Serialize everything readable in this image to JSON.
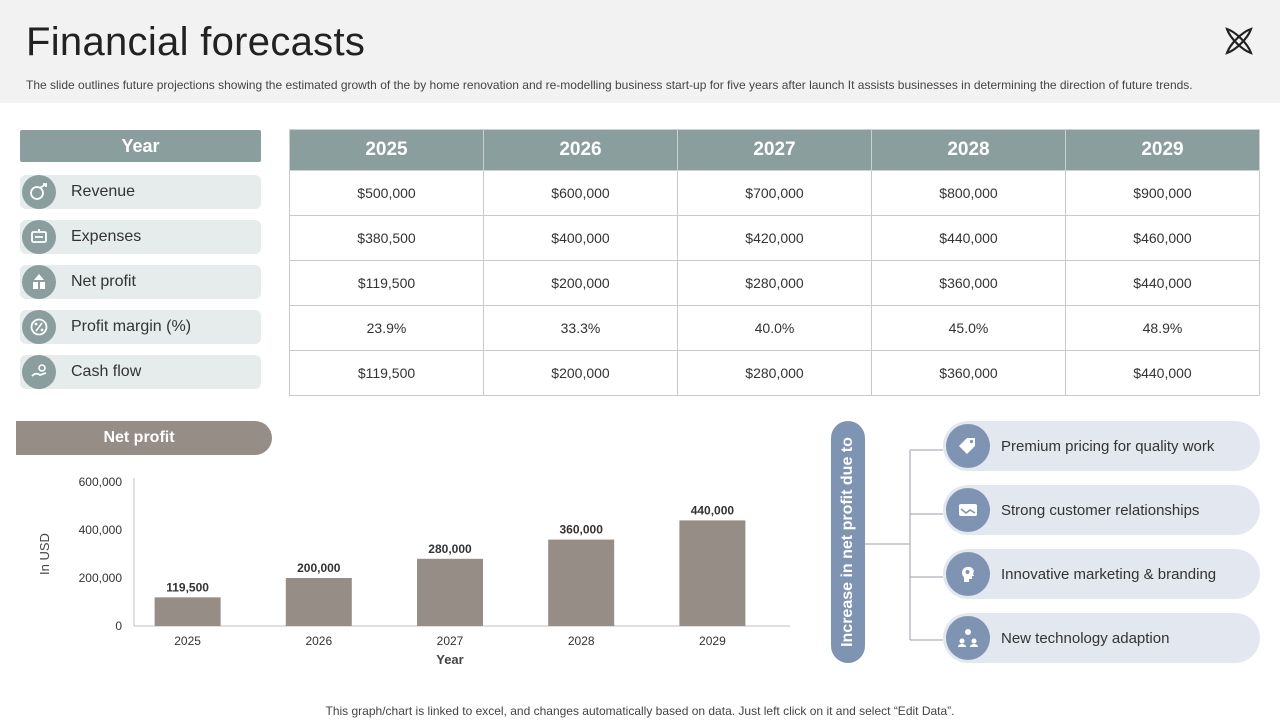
{
  "header": {
    "title": "Financial forecasts",
    "subtitle": "The slide outlines future projections showing the estimated growth of the by home renovation and re-modelling business start-up for five years after launch It assists businesses in determining the direction of future trends."
  },
  "table": {
    "row_header": "Year",
    "years": [
      "2025",
      "2026",
      "2027",
      "2028",
      "2029"
    ],
    "rows": [
      {
        "label": "Revenue",
        "icon": "revenue-icon",
        "values": [
          "$500,000",
          "$600,000",
          "$700,000",
          "$800,000",
          "$900,000"
        ]
      },
      {
        "label": "Expenses",
        "icon": "expenses-icon",
        "values": [
          "$380,500",
          "$400,000",
          "$420,000",
          "$440,000",
          "$460,000"
        ]
      },
      {
        "label": "Net profit",
        "icon": "net-profit-icon",
        "values": [
          "$119,500",
          "$200,000",
          "$280,000",
          "$360,000",
          "$440,000"
        ]
      },
      {
        "label": "Profit margin (%)",
        "icon": "profit-margin-icon",
        "values": [
          "23.9%",
          "33.3%",
          "40.0%",
          "45.0%",
          "48.9%"
        ]
      },
      {
        "label": "Cash flow",
        "icon": "cash-flow-icon",
        "values": [
          "$119,500",
          "$200,000",
          "$280,000",
          "$360,000",
          "$440,000"
        ]
      }
    ]
  },
  "net_profit_section": {
    "heading": "Net profit"
  },
  "chart_data": {
    "type": "bar",
    "title": "",
    "xlabel": "Year",
    "ylabel": "In USD",
    "categories": [
      "2025",
      "2026",
      "2027",
      "2028",
      "2029"
    ],
    "values": [
      119500,
      200000,
      280000,
      360000,
      440000
    ],
    "data_labels": [
      "119,500",
      "200,000",
      "280,000",
      "360,000",
      "440,000"
    ],
    "yticks": [
      0,
      200000,
      400000,
      600000
    ],
    "ytick_labels": [
      "0",
      "200,000",
      "400,000",
      "600,000"
    ],
    "ylim": [
      0,
      600000
    ],
    "grid": false,
    "bar_color": "#968d87"
  },
  "reasons": {
    "heading": "Increase in net profit due to",
    "items": [
      {
        "label": "Premium pricing for quality work",
        "icon": "price-tag-icon"
      },
      {
        "label": "Strong customer relationships",
        "icon": "handshake-icon"
      },
      {
        "label": "Innovative marketing & branding",
        "icon": "idea-head-icon"
      },
      {
        "label": "New technology adaption",
        "icon": "technology-team-icon"
      }
    ]
  },
  "footer": {
    "note": "This graph/chart is linked to excel, and changes automatically based on data. Just left click on it and select “Edit Data”."
  },
  "colors": {
    "table_header": "#8a9e9d",
    "label_bg": "#e6ebeb",
    "bar": "#968d87",
    "accent_blue": "#7f94b3",
    "reason_bg": "#e3e7ef"
  }
}
